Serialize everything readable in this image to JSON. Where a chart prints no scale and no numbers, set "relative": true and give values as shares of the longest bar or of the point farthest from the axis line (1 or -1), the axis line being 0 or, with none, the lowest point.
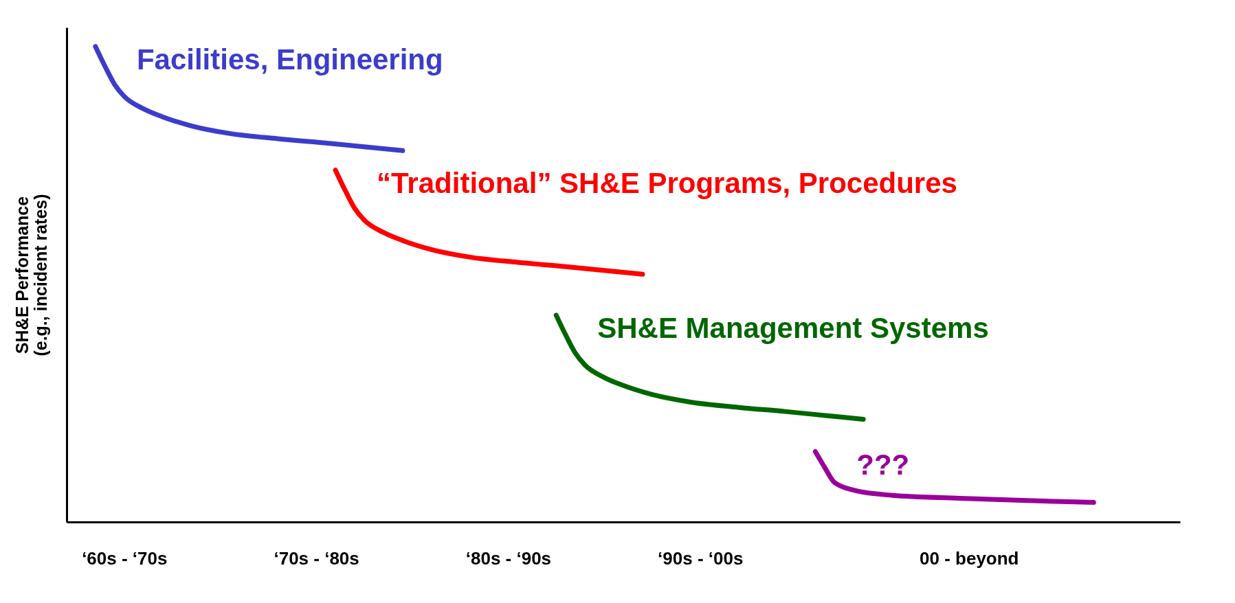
{
  "chart_data": {
    "type": "line",
    "relative": true,
    "ylabel": "SH&E Performance\n(e.g., incident rates)",
    "categories": [
      null,
      null,
      null,
      null,
      null,
      null,
      "‘60s - ‘70s",
      null,
      null,
      null,
      null,
      null,
      null,
      null,
      null,
      null,
      null,
      null,
      null,
      null,
      null,
      null,
      null,
      null,
      null,
      null,
      "‘70s - ‘80s",
      null,
      null,
      null,
      null,
      null,
      null,
      null,
      null,
      null,
      null,
      null,
      null,
      null,
      null,
      null,
      null,
      null,
      null,
      null,
      "‘80s - ‘90s",
      null,
      null,
      null,
      null,
      null,
      null,
      null,
      null,
      null,
      null,
      null,
      null,
      null,
      null,
      null,
      null,
      null,
      null,
      null,
      "‘90s - ‘00s",
      null,
      null,
      null,
      null,
      null,
      null,
      null,
      null,
      null,
      null,
      null,
      null,
      null,
      null,
      null,
      null,
      null,
      null,
      null,
      null,
      null,
      null,
      null,
      null,
      null,
      null,
      null,
      "00 - beyond",
      null,
      null,
      null,
      null,
      null,
      null,
      null,
      null,
      null,
      null,
      null,
      null,
      null,
      null,
      null,
      null,
      null,
      null,
      null,
      null,
      null,
      null
    ],
    "series": [
      {
        "name": "Facilities, Engineering",
        "color": "#3c3ccc",
        "values": [
          null,
          null,
          null,
          1.0,
          0.958,
          0.92,
          0.895,
          null,
          0.869,
          null,
          0.852,
          null,
          null,
          0.833,
          null,
          null,
          null,
          0.817,
          null,
          null,
          null,
          null,
          0.806,
          null,
          null,
          null,
          null,
          0.797,
          null,
          null,
          null,
          0.789,
          null,
          null,
          null,
          0.781,
          null,
          null,
          null,
          null,
          null,
          null,
          null,
          null,
          null,
          null,
          null,
          null,
          null,
          null,
          null,
          null,
          null,
          null,
          null,
          null,
          null,
          null,
          null,
          null,
          null,
          null,
          null,
          null,
          null,
          null,
          null,
          null,
          null,
          null,
          null,
          null,
          null,
          null,
          null,
          null,
          null,
          null,
          null,
          null,
          null,
          null,
          null,
          null,
          null,
          null,
          null,
          null,
          null,
          null,
          null,
          null,
          null,
          null,
          null,
          null,
          null,
          null,
          null,
          null,
          null,
          null,
          null,
          null,
          null,
          null,
          null,
          null,
          null,
          null,
          null,
          null,
          null,
          null,
          null,
          null,
          null
        ]
      },
      {
        "name": "“Traditional” SH&E Programs, Procedures",
        "color": "#ff0000",
        "values": [
          null,
          null,
          null,
          null,
          null,
          null,
          null,
          null,
          null,
          null,
          null,
          null,
          null,
          null,
          null,
          null,
          null,
          null,
          null,
          null,
          null,
          null,
          null,
          null,
          null,
          null,
          null,
          null,
          0.74,
          0.698,
          0.66,
          0.635,
          null,
          0.609,
          null,
          0.592,
          null,
          null,
          0.573,
          null,
          null,
          null,
          0.557,
          null,
          null,
          null,
          null,
          0.546,
          null,
          null,
          null,
          null,
          0.537,
          null,
          null,
          null,
          0.529,
          null,
          null,
          null,
          0.521,
          null,
          null,
          null,
          null,
          null,
          null,
          null,
          null,
          null,
          null,
          null,
          null,
          null,
          null,
          null,
          null,
          null,
          null,
          null,
          null,
          null,
          null,
          null,
          null,
          null,
          null,
          null,
          null,
          null,
          null,
          null,
          null,
          null,
          null,
          null,
          null,
          null,
          null,
          null,
          null,
          null,
          null,
          null,
          null,
          null,
          null,
          null,
          null,
          null,
          null,
          null,
          null,
          null,
          null,
          null,
          null
        ]
      },
      {
        "name": "SH&E Management Systems",
        "color": "#006600",
        "values": [
          null,
          null,
          null,
          null,
          null,
          null,
          null,
          null,
          null,
          null,
          null,
          null,
          null,
          null,
          null,
          null,
          null,
          null,
          null,
          null,
          null,
          null,
          null,
          null,
          null,
          null,
          null,
          null,
          null,
          null,
          null,
          null,
          null,
          null,
          null,
          null,
          null,
          null,
          null,
          null,
          null,
          null,
          null,
          null,
          null,
          null,
          null,
          null,
          null,
          null,
          null,
          0.435,
          0.393,
          0.355,
          0.33,
          null,
          0.304,
          null,
          0.287,
          null,
          null,
          0.268,
          null,
          null,
          null,
          0.252,
          null,
          null,
          null,
          null,
          0.241,
          null,
          null,
          null,
          null,
          0.232,
          null,
          null,
          null,
          0.224,
          null,
          null,
          null,
          0.216,
          null,
          null,
          null,
          null,
          null,
          null,
          null,
          null,
          null,
          null,
          null,
          null,
          null,
          null,
          null,
          null,
          null,
          null,
          null,
          null,
          null,
          null,
          null,
          null,
          null,
          null,
          null,
          null,
          null,
          null,
          null,
          null,
          null
        ]
      },
      {
        "name": "???",
        "color": "#990099",
        "values": [
          null,
          null,
          null,
          null,
          null,
          null,
          null,
          null,
          null,
          null,
          null,
          null,
          null,
          null,
          null,
          null,
          null,
          null,
          null,
          null,
          null,
          null,
          null,
          null,
          null,
          null,
          null,
          null,
          null,
          null,
          null,
          null,
          null,
          null,
          null,
          null,
          null,
          null,
          null,
          null,
          null,
          null,
          null,
          null,
          null,
          null,
          null,
          null,
          null,
          null,
          null,
          null,
          null,
          null,
          null,
          null,
          null,
          null,
          null,
          null,
          null,
          null,
          null,
          null,
          null,
          null,
          null,
          null,
          null,
          null,
          null,
          null,
          null,
          null,
          null,
          null,
          null,
          null,
          0.148,
          0.114,
          0.083,
          null,
          0.067,
          null,
          null,
          null,
          0.056,
          null,
          null,
          null,
          null,
          null,
          null,
          0.05,
          null,
          null,
          null,
          null,
          null,
          null,
          0.045,
          null,
          null,
          null,
          null,
          null,
          null,
          0.041,
          null,
          null,
          null,
          null,
          null,
          null,
          null,
          null,
          null
        ]
      }
    ]
  }
}
